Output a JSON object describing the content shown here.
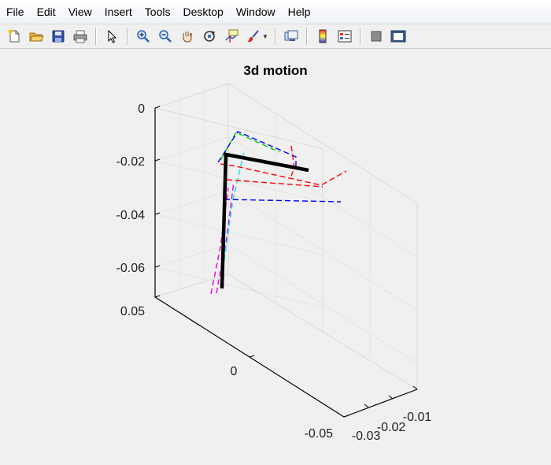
{
  "menu": [
    "File",
    "Edit",
    "View",
    "Insert",
    "Tools",
    "Desktop",
    "Window",
    "Help"
  ],
  "toolbar": {
    "groups": [
      [
        "new-file-icon",
        "open-folder-icon",
        "save-icon",
        "print-icon"
      ],
      [
        "pointer-icon"
      ],
      [
        "zoom-in-icon",
        "zoom-out-icon",
        "pan-hand-icon",
        "rotate-3d-icon",
        "data-cursor-icon",
        "brush-icon"
      ],
      [
        "link-plot-icon"
      ],
      [
        "colorbar-icon",
        "legend-icon"
      ],
      [
        "hide-plot-tools-icon",
        "show-plot-tools-icon"
      ]
    ]
  },
  "chart_data": {
    "type": "line3d",
    "title": "3d motion",
    "zticks": [
      "0",
      "-0.02",
      "-0.04",
      "-0.06"
    ],
    "xticks": [
      "0.05",
      "0",
      "-0.05"
    ],
    "yticks": [
      "-0.03",
      "-0.02",
      "-0.01"
    ],
    "grid": true,
    "series": [
      {
        "color": "#000000",
        "style": "solid",
        "width": 4
      },
      {
        "color": "#ff0000",
        "style": "dashed"
      },
      {
        "color": "#0000ff",
        "style": "dashed"
      },
      {
        "color": "#00cc00",
        "style": "dashed"
      },
      {
        "color": "#00e5e5",
        "style": "dashed"
      },
      {
        "color": "#e600e6",
        "style": "dashed"
      }
    ]
  }
}
